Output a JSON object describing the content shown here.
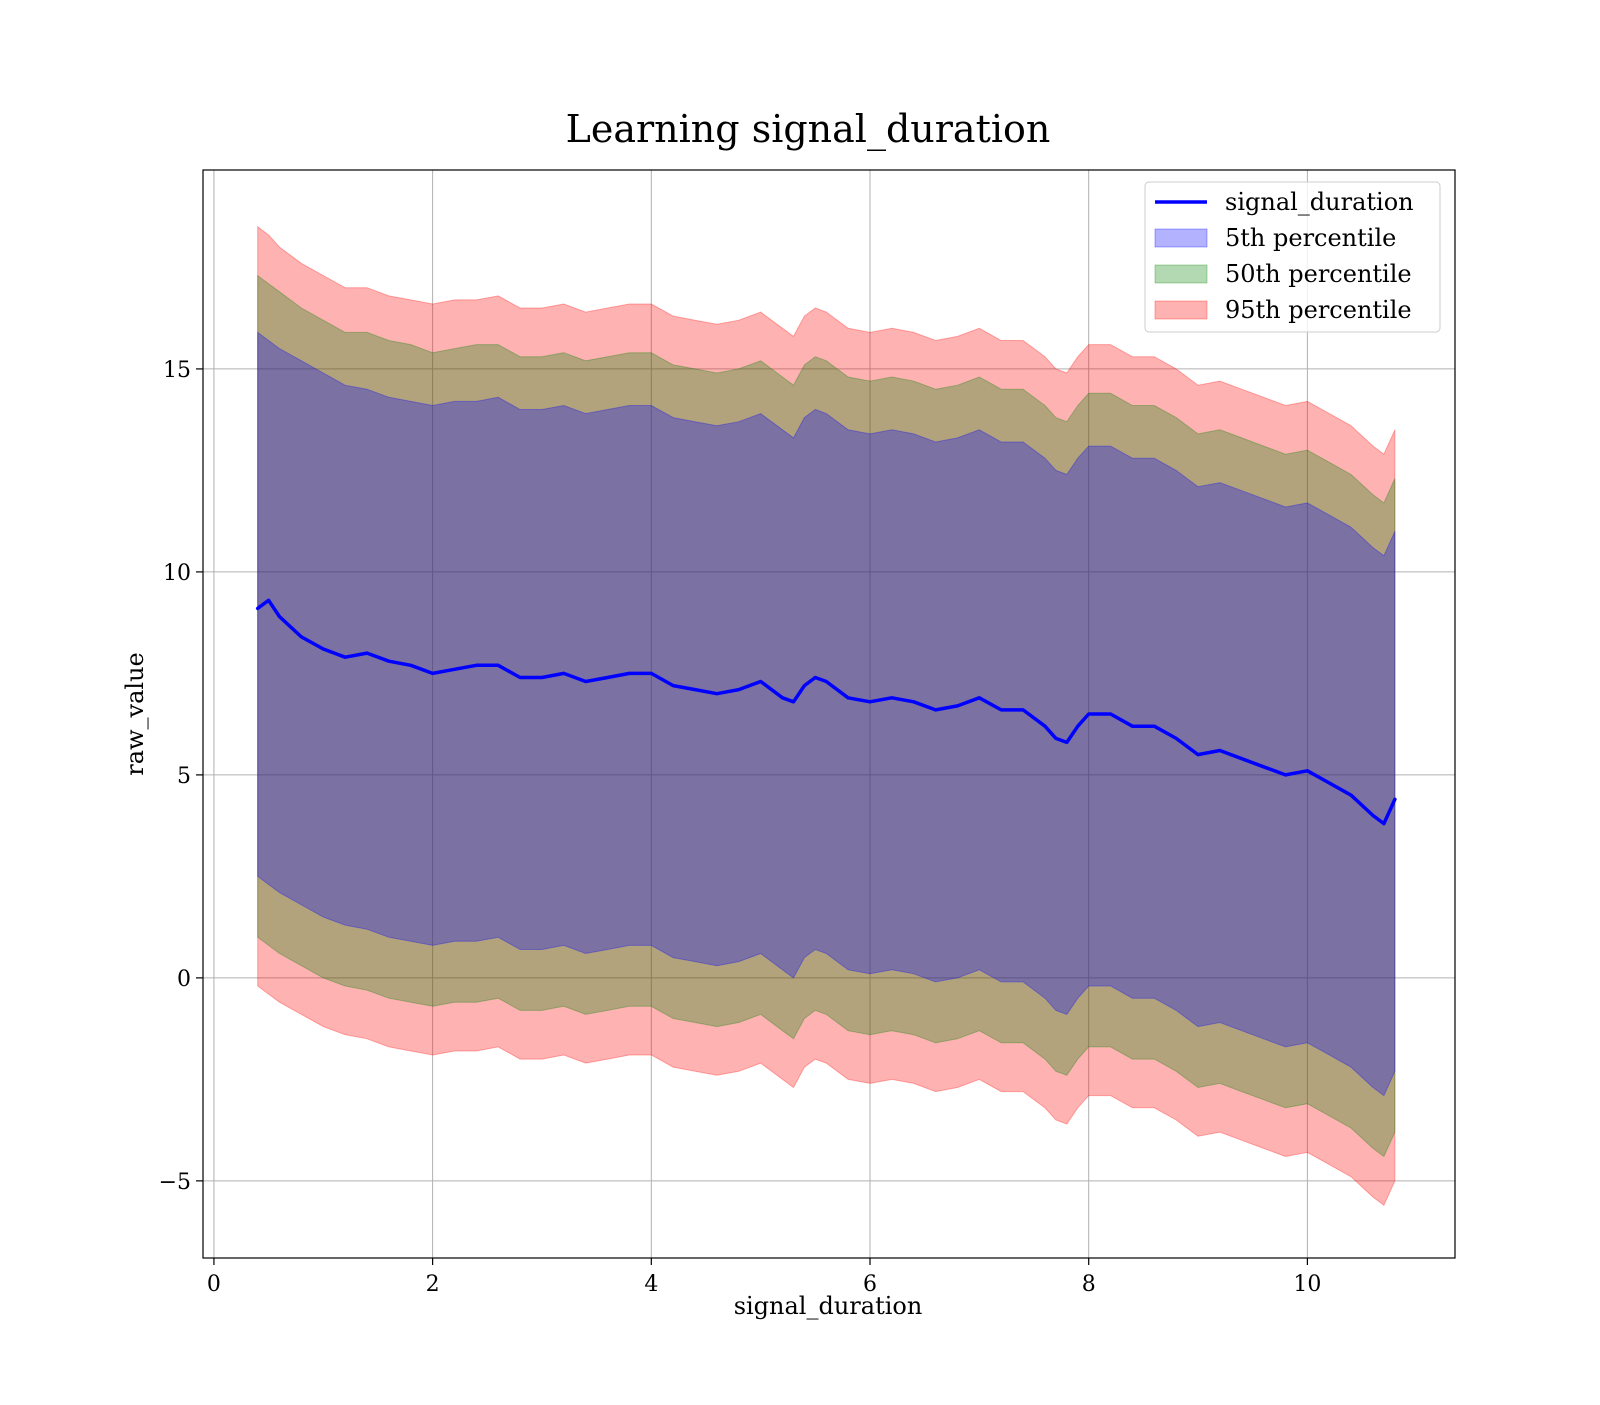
{
  "chart_data": {
    "type": "area",
    "title": "Learning signal_duration",
    "xlabel": "signal_duration",
    "ylabel": "raw_value",
    "xlim": [
      -0.1,
      11.35
    ],
    "ylim": [
      -6.9,
      19.9
    ],
    "xticks": [
      0,
      2,
      4,
      6,
      8,
      10
    ],
    "xtick_labels": [
      "0",
      "2",
      "4",
      "6",
      "8",
      "10"
    ],
    "yticks": [
      -5,
      0,
      5,
      10,
      15
    ],
    "ytick_labels": [
      "−5",
      "0",
      "5",
      "10",
      "15"
    ],
    "grid": true,
    "legend_position": "top-right",
    "x": [
      0.4,
      0.5,
      0.6,
      0.8,
      1.0,
      1.2,
      1.4,
      1.6,
      1.8,
      2.0,
      2.2,
      2.4,
      2.6,
      2.8,
      3.0,
      3.2,
      3.4,
      3.6,
      3.8,
      4.0,
      4.2,
      4.4,
      4.6,
      4.8,
      5.0,
      5.2,
      5.3,
      5.4,
      5.5,
      5.6,
      5.8,
      6.0,
      6.2,
      6.4,
      6.6,
      6.8,
      7.0,
      7.2,
      7.4,
      7.6,
      7.7,
      7.8,
      7.9,
      8.0,
      8.2,
      8.4,
      8.6,
      8.8,
      9.0,
      9.2,
      9.4,
      9.6,
      9.8,
      10.0,
      10.2,
      10.4,
      10.6,
      10.7,
      10.8
    ],
    "series": [
      {
        "name": "signal_duration",
        "kind": "line",
        "color": "#0000ff",
        "values": [
          9.1,
          9.3,
          8.9,
          8.4,
          8.1,
          7.9,
          8.0,
          7.8,
          7.7,
          7.5,
          7.6,
          7.7,
          7.7,
          7.4,
          7.4,
          7.5,
          7.3,
          7.4,
          7.5,
          7.5,
          7.2,
          7.1,
          7.0,
          7.1,
          7.3,
          6.9,
          6.8,
          7.2,
          7.4,
          7.3,
          6.9,
          6.8,
          6.9,
          6.8,
          6.6,
          6.7,
          6.9,
          6.6,
          6.6,
          6.2,
          5.9,
          5.8,
          6.2,
          6.5,
          6.5,
          6.2,
          6.2,
          5.9,
          5.5,
          5.6,
          5.4,
          5.2,
          5.0,
          5.1,
          4.8,
          4.5,
          4.0,
          3.8,
          4.4
        ]
      },
      {
        "name": "5th percentile",
        "kind": "band",
        "color": "#0000ff",
        "upper": [
          15.9,
          15.7,
          15.5,
          15.2,
          14.9,
          14.6,
          14.5,
          14.3,
          14.2,
          14.1,
          14.2,
          14.2,
          14.3,
          14.0,
          14.0,
          14.1,
          13.9,
          14.0,
          14.1,
          14.1,
          13.8,
          13.7,
          13.6,
          13.7,
          13.9,
          13.5,
          13.3,
          13.8,
          14.0,
          13.9,
          13.5,
          13.4,
          13.5,
          13.4,
          13.2,
          13.3,
          13.5,
          13.2,
          13.2,
          12.8,
          12.5,
          12.4,
          12.8,
          13.1,
          13.1,
          12.8,
          12.8,
          12.5,
          12.1,
          12.2,
          12.0,
          11.8,
          11.6,
          11.7,
          11.4,
          11.1,
          10.6,
          10.4,
          11.0
        ],
        "lower": [
          2.5,
          2.3,
          2.1,
          1.8,
          1.5,
          1.3,
          1.2,
          1.0,
          0.9,
          0.8,
          0.9,
          0.9,
          1.0,
          0.7,
          0.7,
          0.8,
          0.6,
          0.7,
          0.8,
          0.8,
          0.5,
          0.4,
          0.3,
          0.4,
          0.6,
          0.2,
          0.0,
          0.5,
          0.7,
          0.6,
          0.2,
          0.1,
          0.2,
          0.1,
          -0.1,
          0.0,
          0.2,
          -0.1,
          -0.1,
          -0.5,
          -0.8,
          -0.9,
          -0.5,
          -0.2,
          -0.2,
          -0.5,
          -0.5,
          -0.8,
          -1.2,
          -1.1,
          -1.3,
          -1.5,
          -1.7,
          -1.6,
          -1.9,
          -2.2,
          -2.7,
          -2.9,
          -2.3
        ]
      },
      {
        "name": "50th percentile",
        "kind": "band",
        "color": "#008000",
        "upper": [
          17.3,
          17.1,
          16.9,
          16.5,
          16.2,
          15.9,
          15.9,
          15.7,
          15.6,
          15.4,
          15.5,
          15.6,
          15.6,
          15.3,
          15.3,
          15.4,
          15.2,
          15.3,
          15.4,
          15.4,
          15.1,
          15.0,
          14.9,
          15.0,
          15.2,
          14.8,
          14.6,
          15.1,
          15.3,
          15.2,
          14.8,
          14.7,
          14.8,
          14.7,
          14.5,
          14.6,
          14.8,
          14.5,
          14.5,
          14.1,
          13.8,
          13.7,
          14.1,
          14.4,
          14.4,
          14.1,
          14.1,
          13.8,
          13.4,
          13.5,
          13.3,
          13.1,
          12.9,
          13.0,
          12.7,
          12.4,
          11.9,
          11.7,
          12.3
        ],
        "lower": [
          1.0,
          0.8,
          0.6,
          0.3,
          0.0,
          -0.2,
          -0.3,
          -0.5,
          -0.6,
          -0.7,
          -0.6,
          -0.6,
          -0.5,
          -0.8,
          -0.8,
          -0.7,
          -0.9,
          -0.8,
          -0.7,
          -0.7,
          -1.0,
          -1.1,
          -1.2,
          -1.1,
          -0.9,
          -1.3,
          -1.5,
          -1.0,
          -0.8,
          -0.9,
          -1.3,
          -1.4,
          -1.3,
          -1.4,
          -1.6,
          -1.5,
          -1.3,
          -1.6,
          -1.6,
          -2.0,
          -2.3,
          -2.4,
          -2.0,
          -1.7,
          -1.7,
          -2.0,
          -2.0,
          -2.3,
          -2.7,
          -2.6,
          -2.8,
          -3.0,
          -3.2,
          -3.1,
          -3.4,
          -3.7,
          -4.2,
          -4.4,
          -3.8
        ]
      },
      {
        "name": "95th percentile",
        "kind": "band",
        "color": "#ff0000",
        "upper": [
          18.5,
          18.3,
          18.0,
          17.6,
          17.3,
          17.0,
          17.0,
          16.8,
          16.7,
          16.6,
          16.7,
          16.7,
          16.8,
          16.5,
          16.5,
          16.6,
          16.4,
          16.5,
          16.6,
          16.6,
          16.3,
          16.2,
          16.1,
          16.2,
          16.4,
          16.0,
          15.8,
          16.3,
          16.5,
          16.4,
          16.0,
          15.9,
          16.0,
          15.9,
          15.7,
          15.8,
          16.0,
          15.7,
          15.7,
          15.3,
          15.0,
          14.9,
          15.3,
          15.6,
          15.6,
          15.3,
          15.3,
          15.0,
          14.6,
          14.7,
          14.5,
          14.3,
          14.1,
          14.2,
          13.9,
          13.6,
          13.1,
          12.9,
          13.5
        ],
        "lower": [
          -0.2,
          -0.4,
          -0.6,
          -0.9,
          -1.2,
          -1.4,
          -1.5,
          -1.7,
          -1.8,
          -1.9,
          -1.8,
          -1.8,
          -1.7,
          -2.0,
          -2.0,
          -1.9,
          -2.1,
          -2.0,
          -1.9,
          -1.9,
          -2.2,
          -2.3,
          -2.4,
          -2.3,
          -2.1,
          -2.5,
          -2.7,
          -2.2,
          -2.0,
          -2.1,
          -2.5,
          -2.6,
          -2.5,
          -2.6,
          -2.8,
          -2.7,
          -2.5,
          -2.8,
          -2.8,
          -3.2,
          -3.5,
          -3.6,
          -3.2,
          -2.9,
          -2.9,
          -3.2,
          -3.2,
          -3.5,
          -3.9,
          -3.8,
          -4.0,
          -4.2,
          -4.4,
          -4.3,
          -4.6,
          -4.9,
          -5.4,
          -5.6,
          -5.0
        ]
      }
    ]
  }
}
